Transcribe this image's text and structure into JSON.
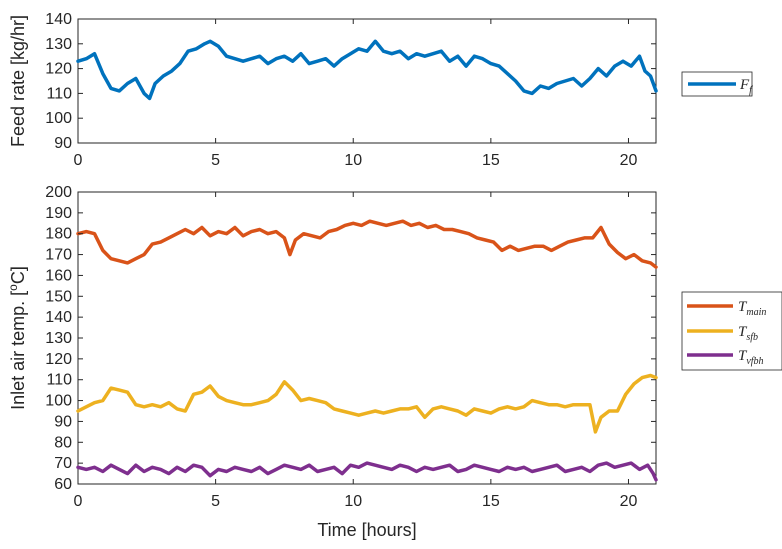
{
  "chart_data": [
    {
      "type": "line",
      "xlabel": "",
      "ylabel": "Feed rate [kg/hr]",
      "xlim": [
        0,
        21
      ],
      "ylim": [
        90,
        140
      ],
      "xticks": [
        0,
        5,
        10,
        15,
        20
      ],
      "yticks": [
        90,
        100,
        110,
        120,
        130,
        140
      ],
      "grid": false,
      "legend_position": "right",
      "series": [
        {
          "name": "F_f",
          "legend_main": "F",
          "legend_sub": "f",
          "color": "#0072BD",
          "x": [
            0,
            0.3,
            0.6,
            0.9,
            1.2,
            1.5,
            1.8,
            2.1,
            2.4,
            2.6,
            2.8,
            3.1,
            3.4,
            3.7,
            4.0,
            4.3,
            4.6,
            4.8,
            5.1,
            5.4,
            5.7,
            6.0,
            6.3,
            6.6,
            6.9,
            7.2,
            7.5,
            7.8,
            8.1,
            8.4,
            8.7,
            9.0,
            9.3,
            9.6,
            9.9,
            10.2,
            10.5,
            10.8,
            11.1,
            11.4,
            11.7,
            12.0,
            12.3,
            12.6,
            12.9,
            13.2,
            13.5,
            13.8,
            14.1,
            14.4,
            14.7,
            15.0,
            15.3,
            15.6,
            15.9,
            16.2,
            16.5,
            16.8,
            17.1,
            17.4,
            17.7,
            18.0,
            18.3,
            18.6,
            18.9,
            19.2,
            19.5,
            19.8,
            20.1,
            20.4,
            20.6,
            20.8,
            21.0
          ],
          "y": [
            123,
            124,
            126,
            118,
            112,
            111,
            114,
            116,
            110,
            108,
            114,
            117,
            119,
            122,
            127,
            128,
            130,
            131,
            129,
            125,
            124,
            123,
            124,
            125,
            122,
            124,
            125,
            123,
            126,
            122,
            123,
            124,
            121,
            124,
            126,
            128,
            127,
            131,
            127,
            126,
            127,
            124,
            126,
            125,
            126,
            127,
            123,
            125,
            121,
            125,
            124,
            122,
            121,
            118,
            115,
            111,
            110,
            113,
            112,
            114,
            115,
            116,
            113,
            116,
            120,
            117,
            121,
            123,
            121,
            125,
            119,
            117,
            111
          ]
        }
      ]
    },
    {
      "type": "line",
      "xlabel": "Time [hours]",
      "ylabel": "Inlet air temp. [°C]",
      "ylabel_parts": {
        "prefix": "Inlet air temp. [",
        "sup": "o",
        "suffix": "C]"
      },
      "xlim": [
        0,
        21
      ],
      "ylim": [
        60,
        200
      ],
      "xticks": [
        0,
        5,
        10,
        15,
        20
      ],
      "yticks": [
        60,
        70,
        80,
        90,
        100,
        110,
        120,
        130,
        140,
        150,
        160,
        170,
        180,
        190,
        200
      ],
      "grid": false,
      "legend_position": "right",
      "series": [
        {
          "name": "T_main",
          "legend_main": "T",
          "legend_sub": "main",
          "color": "#D95319",
          "x": [
            0,
            0.3,
            0.6,
            0.9,
            1.2,
            1.5,
            1.8,
            2.1,
            2.4,
            2.7,
            3.0,
            3.3,
            3.6,
            3.9,
            4.2,
            4.5,
            4.8,
            5.1,
            5.4,
            5.7,
            6.0,
            6.3,
            6.6,
            6.9,
            7.2,
            7.5,
            7.7,
            7.9,
            8.2,
            8.5,
            8.8,
            9.1,
            9.4,
            9.7,
            10.0,
            10.3,
            10.6,
            10.9,
            11.2,
            11.5,
            11.8,
            12.1,
            12.4,
            12.7,
            13.0,
            13.3,
            13.6,
            13.9,
            14.2,
            14.5,
            14.8,
            15.1,
            15.4,
            15.7,
            16.0,
            16.3,
            16.6,
            16.9,
            17.2,
            17.5,
            17.8,
            18.1,
            18.4,
            18.7,
            19.0,
            19.3,
            19.6,
            19.9,
            20.2,
            20.5,
            20.8,
            21.0
          ],
          "y": [
            180,
            181,
            180,
            172,
            168,
            167,
            166,
            168,
            170,
            175,
            176,
            178,
            180,
            182,
            180,
            183,
            179,
            181,
            180,
            183,
            179,
            181,
            182,
            180,
            181,
            178,
            170,
            177,
            180,
            179,
            178,
            181,
            182,
            184,
            185,
            184,
            186,
            185,
            184,
            185,
            186,
            184,
            185,
            183,
            184,
            182,
            182,
            181,
            180,
            178,
            177,
            176,
            172,
            174,
            172,
            173,
            174,
            174,
            172,
            174,
            176,
            177,
            178,
            178,
            183,
            175,
            171,
            168,
            170,
            167,
            166,
            164
          ]
        },
        {
          "name": "T_sfb",
          "legend_main": "T",
          "legend_sub": "sfb",
          "color": "#EDB120",
          "x": [
            0,
            0.3,
            0.6,
            0.9,
            1.2,
            1.5,
            1.8,
            2.1,
            2.4,
            2.7,
            3.0,
            3.3,
            3.6,
            3.9,
            4.2,
            4.5,
            4.8,
            5.1,
            5.4,
            5.7,
            6.0,
            6.3,
            6.6,
            6.9,
            7.2,
            7.5,
            7.8,
            8.1,
            8.4,
            8.7,
            9.0,
            9.3,
            9.6,
            9.9,
            10.2,
            10.5,
            10.8,
            11.1,
            11.4,
            11.7,
            12.0,
            12.3,
            12.6,
            12.9,
            13.2,
            13.5,
            13.8,
            14.1,
            14.4,
            14.7,
            15.0,
            15.3,
            15.6,
            15.9,
            16.2,
            16.5,
            16.8,
            17.1,
            17.4,
            17.7,
            18.0,
            18.3,
            18.6,
            18.8,
            19.0,
            19.3,
            19.6,
            19.9,
            20.2,
            20.5,
            20.8,
            21.0
          ],
          "y": [
            95,
            97,
            99,
            100,
            106,
            105,
            104,
            98,
            97,
            98,
            97,
            99,
            96,
            95,
            103,
            104,
            107,
            102,
            100,
            99,
            98,
            98,
            99,
            100,
            103,
            109,
            105,
            100,
            101,
            100,
            99,
            96,
            95,
            94,
            93,
            94,
            95,
            94,
            95,
            96,
            96,
            97,
            92,
            96,
            97,
            96,
            95,
            93,
            96,
            95,
            94,
            96,
            97,
            96,
            97,
            100,
            99,
            98,
            98,
            97,
            98,
            98,
            98,
            85,
            92,
            95,
            95,
            103,
            108,
            111,
            112,
            111
          ]
        },
        {
          "name": "T_vfbh",
          "legend_main": "T",
          "legend_sub": "vfbh",
          "color": "#7E2F8E",
          "x": [
            0,
            0.3,
            0.6,
            0.9,
            1.2,
            1.5,
            1.8,
            2.1,
            2.4,
            2.7,
            3.0,
            3.3,
            3.6,
            3.9,
            4.2,
            4.5,
            4.8,
            5.1,
            5.4,
            5.7,
            6.0,
            6.3,
            6.6,
            6.9,
            7.2,
            7.5,
            7.8,
            8.1,
            8.4,
            8.7,
            9.0,
            9.3,
            9.6,
            9.9,
            10.2,
            10.5,
            10.8,
            11.1,
            11.4,
            11.7,
            12.0,
            12.3,
            12.6,
            12.9,
            13.2,
            13.5,
            13.8,
            14.1,
            14.4,
            14.7,
            15.0,
            15.3,
            15.6,
            15.9,
            16.2,
            16.5,
            16.8,
            17.1,
            17.4,
            17.7,
            18.0,
            18.3,
            18.6,
            18.9,
            19.2,
            19.5,
            19.8,
            20.1,
            20.4,
            20.7,
            20.9,
            21.0
          ],
          "y": [
            68,
            67,
            68,
            66,
            69,
            67,
            65,
            69,
            66,
            68,
            67,
            65,
            68,
            66,
            69,
            68,
            64,
            67,
            66,
            68,
            67,
            66,
            68,
            65,
            67,
            69,
            68,
            67,
            69,
            66,
            67,
            68,
            65,
            69,
            68,
            70,
            69,
            68,
            67,
            69,
            68,
            66,
            68,
            67,
            68,
            69,
            66,
            67,
            69,
            68,
            67,
            66,
            68,
            67,
            68,
            66,
            67,
            68,
            69,
            66,
            67,
            68,
            66,
            69,
            70,
            68,
            69,
            70,
            67,
            69,
            65,
            62
          ]
        }
      ]
    }
  ]
}
